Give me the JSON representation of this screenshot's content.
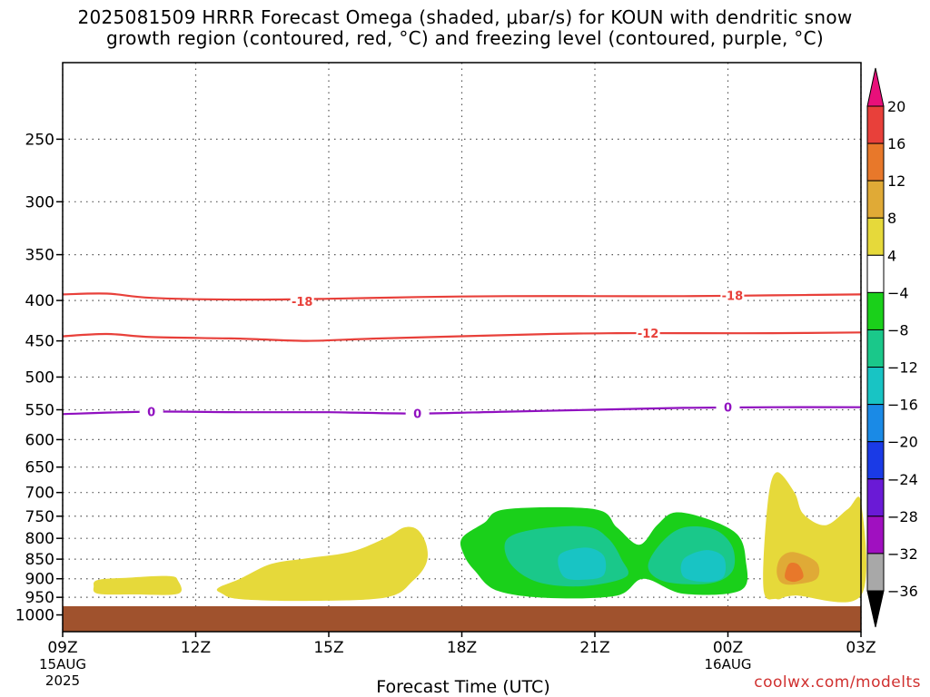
{
  "chart_data": {
    "type": "heatmap",
    "title_line1": "2025081509 HRRR Forecast Omega (shaded, μbar/s) for KOUN with dendritic snow",
    "title_line2": "growth region (contoured, red, °C) and freezing level (contoured, purple, °C)",
    "xlabel": "Forecast Time (UTC)",
    "ylabel": "",
    "x_ticks": [
      {
        "hour": 0,
        "label": "09Z",
        "sub1": "15AUG",
        "sub2": "2025"
      },
      {
        "hour": 3,
        "label": "12Z",
        "sub1": "",
        "sub2": ""
      },
      {
        "hour": 6,
        "label": "15Z",
        "sub1": "",
        "sub2": ""
      },
      {
        "hour": 9,
        "label": "18Z",
        "sub1": "",
        "sub2": ""
      },
      {
        "hour": 12,
        "label": "21Z",
        "sub1": "",
        "sub2": ""
      },
      {
        "hour": 15,
        "label": "00Z",
        "sub1": "16AUG",
        "sub2": ""
      },
      {
        "hour": 18,
        "label": "03Z",
        "sub1": "",
        "sub2": ""
      }
    ],
    "xlim_hours": [
      0,
      18
    ],
    "y_ticks": [
      "250",
      "300",
      "350",
      "400",
      "450",
      "500",
      "550",
      "600",
      "650",
      "700",
      "750",
      "800",
      "850",
      "900",
      "950",
      "1000"
    ],
    "ylim_hPa": [
      200,
      1050
    ],
    "y_scale": "log",
    "grid": true,
    "colorbar": {
      "labels": [
        "20",
        "16",
        "12",
        "8",
        "4",
        "−4",
        "−8",
        "−12",
        "−16",
        "−20",
        "−24",
        "−28",
        "−32",
        "−36"
      ],
      "colors": [
        "#e8107a",
        "#e8403a",
        "#e8782a",
        "#e0aa36",
        "#e6d93a",
        "#ffffff",
        "#1ad01a",
        "#1ac88a",
        "#18c4c4",
        "#1a8ae6",
        "#1a3ae6",
        "#6a1ad6",
        "#a010c0",
        "#a8a8a8",
        "#000000"
      ]
    },
    "contours": [
      {
        "label": "-18",
        "color": "#e8403a",
        "points": [
          [
            0,
            393
          ],
          [
            1,
            392
          ],
          [
            2,
            397
          ],
          [
            4,
            399
          ],
          [
            6,
            398
          ],
          [
            8,
            396
          ],
          [
            10,
            395
          ],
          [
            12,
            395
          ],
          [
            14,
            395
          ],
          [
            16,
            394
          ],
          [
            18,
            393
          ]
        ],
        "label_at": [
          [
            5.4,
            401
          ],
          [
            15.1,
            394
          ]
        ]
      },
      {
        "label": "-12",
        "color": "#e8403a",
        "points": [
          [
            0,
            444
          ],
          [
            1,
            441
          ],
          [
            2,
            445
          ],
          [
            4,
            447
          ],
          [
            5.5,
            450
          ],
          [
            7,
            447
          ],
          [
            9,
            444
          ],
          [
            11,
            441
          ],
          [
            12.5,
            440
          ],
          [
            14,
            440
          ],
          [
            16,
            440
          ],
          [
            18,
            439
          ]
        ],
        "label_at": [
          [
            13.2,
            440
          ]
        ]
      },
      {
        "label": "0",
        "color": "#9010c0",
        "points": [
          [
            0,
            557
          ],
          [
            2,
            553
          ],
          [
            4,
            554
          ],
          [
            6,
            554
          ],
          [
            8,
            556
          ],
          [
            10,
            553
          ],
          [
            12,
            550
          ],
          [
            14,
            547
          ],
          [
            16,
            546
          ],
          [
            18,
            546
          ]
        ],
        "label_at": [
          [
            2,
            553
          ],
          [
            8,
            556
          ],
          [
            15,
            546
          ]
        ]
      }
    ],
    "omega_regions": [
      {
        "value_bin": "4..8",
        "color": "#e6d93a",
        "points": [
          [
            0.8,
            903
          ],
          [
            1.5,
            897
          ],
          [
            2.4,
            893
          ],
          [
            2.6,
            905
          ],
          [
            2.6,
            940
          ],
          [
            1.6,
            942
          ],
          [
            0.8,
            940
          ],
          [
            0.7,
            920
          ]
        ]
      },
      {
        "value_bin": "4..8",
        "color": "#e6d93a",
        "points": [
          [
            3.5,
            925
          ],
          [
            4,
            900
          ],
          [
            4.7,
            862
          ],
          [
            5.5,
            848
          ],
          [
            6.5,
            832
          ],
          [
            7.3,
            798
          ],
          [
            7.7,
            775
          ],
          [
            8,
            780
          ],
          [
            8.2,
            815
          ],
          [
            8.2,
            860
          ],
          [
            7.9,
            905
          ],
          [
            7.3,
            950
          ],
          [
            5.5,
            960
          ],
          [
            4,
            955
          ],
          [
            3.6,
            940
          ]
        ]
      },
      {
        "value_bin": "-8..-4",
        "color": "#1ad01a",
        "points": [
          [
            9,
            800
          ],
          [
            9.5,
            765
          ],
          [
            10,
            735
          ],
          [
            12,
            735
          ],
          [
            12.5,
            775
          ],
          [
            13,
            815
          ],
          [
            13.4,
            770
          ],
          [
            13.8,
            742
          ],
          [
            14.5,
            755
          ],
          [
            15.2,
            790
          ],
          [
            15.4,
            850
          ],
          [
            15.3,
            930
          ],
          [
            14,
            940
          ],
          [
            13.1,
            900
          ],
          [
            12.5,
            945
          ],
          [
            11,
            952
          ],
          [
            9.8,
            932
          ],
          [
            9.3,
            880
          ],
          [
            9.05,
            840
          ]
        ]
      },
      {
        "value_bin": "-12..-8",
        "color": "#1ac88a",
        "points": [
          [
            10,
            805
          ],
          [
            10.6,
            780
          ],
          [
            11.8,
            773
          ],
          [
            12.3,
            800
          ],
          [
            12.6,
            850
          ],
          [
            12.7,
            895
          ],
          [
            11.7,
            920
          ],
          [
            10.7,
            908
          ],
          [
            10.1,
            862
          ]
        ]
      },
      {
        "value_bin": "-12..-8",
        "color": "#1ac88a",
        "points": [
          [
            13.2,
            870
          ],
          [
            13.5,
            810
          ],
          [
            14,
            775
          ],
          [
            14.7,
            780
          ],
          [
            15.1,
            820
          ],
          [
            15.1,
            880
          ],
          [
            14.6,
            912
          ],
          [
            13.6,
            908
          ]
        ]
      },
      {
        "value_bin": "-16..-12",
        "color": "#18c4c4",
        "points": [
          [
            11.2,
            840
          ],
          [
            11.8,
            822
          ],
          [
            12.2,
            842
          ],
          [
            12.2,
            890
          ],
          [
            11.8,
            902
          ],
          [
            11.3,
            895
          ]
        ]
      },
      {
        "value_bin": "-16..-12",
        "color": "#18c4c4",
        "points": [
          [
            14,
            850
          ],
          [
            14.5,
            828
          ],
          [
            14.9,
            845
          ],
          [
            14.9,
            895
          ],
          [
            14.5,
            908
          ],
          [
            14,
            895
          ]
        ]
      },
      {
        "value_bin": "4..8",
        "color": "#e6d93a",
        "points": [
          [
            15.8,
            925
          ],
          [
            15.9,
            720
          ],
          [
            16.1,
            660
          ],
          [
            16.5,
            700
          ],
          [
            16.7,
            745
          ],
          [
            17.2,
            770
          ],
          [
            17.7,
            735
          ],
          [
            18,
            720
          ],
          [
            18,
            945
          ],
          [
            16.5,
            945
          ],
          [
            16.1,
            955
          ]
        ]
      },
      {
        "value_bin": "8..12",
        "color": "#e0aa36",
        "points": [
          [
            16.1,
            880
          ],
          [
            16.2,
            845
          ],
          [
            16.5,
            833
          ],
          [
            17,
            858
          ],
          [
            17,
            900
          ],
          [
            16.5,
            915
          ],
          [
            16.2,
            910
          ]
        ]
      },
      {
        "value_bin": "12..16",
        "color": "#e8782a",
        "points": [
          [
            16.3,
            880
          ],
          [
            16.4,
            860
          ],
          [
            16.6,
            865
          ],
          [
            16.7,
            895
          ],
          [
            16.5,
            908
          ],
          [
            16.3,
            900
          ]
        ]
      }
    ],
    "ground": {
      "color": "#a0522d",
      "top_hPa": 975
    }
  },
  "footer": {
    "credit": "coolwx.com/modelts"
  }
}
